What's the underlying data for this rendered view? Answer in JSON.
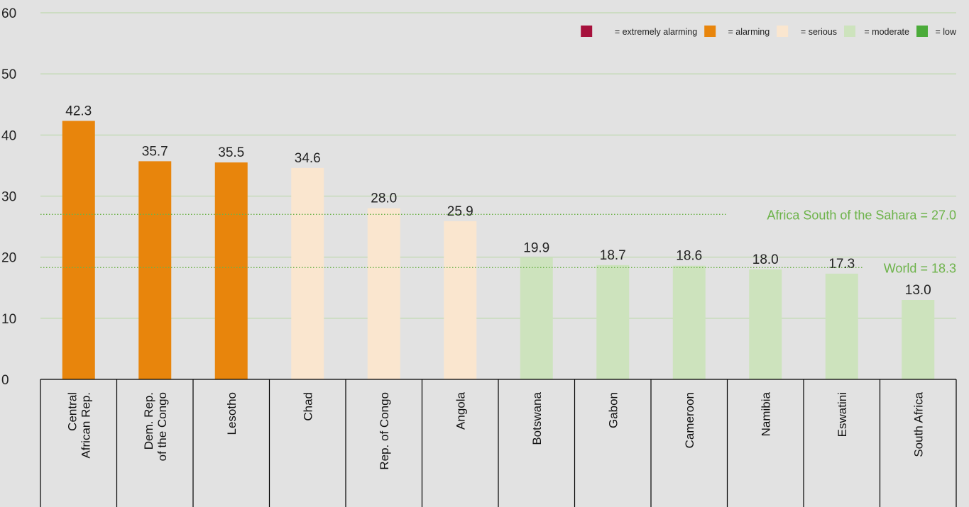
{
  "chart_data": {
    "type": "bar",
    "ylim": [
      0,
      60
    ],
    "yticks": [
      0,
      10,
      20,
      30,
      40,
      50,
      60
    ],
    "grid": true,
    "categories": [
      "Central African Rep.",
      "Dem. Rep. of the Congo",
      "Lesotho",
      "Chad",
      "Rep. of Congo",
      "Angola",
      "Botswana",
      "Gabon",
      "Cameroon",
      "Namibia",
      "Eswatini",
      "South Africa"
    ],
    "category_lines": [
      [
        "Central",
        "African Rep."
      ],
      [
        "Dem. Rep.",
        "of the Congo"
      ],
      [
        "Lesotho"
      ],
      [
        "Chad"
      ],
      [
        "Rep. of Congo"
      ],
      [
        "Angola"
      ],
      [
        "Botswana"
      ],
      [
        "Gabon"
      ],
      [
        "Cameroon"
      ],
      [
        "Namibia"
      ],
      [
        "Eswatini"
      ],
      [
        "South Africa"
      ]
    ],
    "values": [
      42.3,
      35.7,
      35.5,
      34.6,
      28.0,
      25.9,
      19.9,
      18.7,
      18.6,
      18.0,
      17.3,
      13.0
    ],
    "value_labels": [
      "42.3",
      "35.7",
      "35.5",
      "34.6",
      "28.0",
      "25.9",
      "19.9",
      "18.7",
      "18.6",
      "18.0",
      "17.3",
      "13.0"
    ],
    "severity": [
      "alarming",
      "alarming",
      "alarming",
      "serious",
      "serious",
      "serious",
      "moderate",
      "moderate",
      "moderate",
      "moderate",
      "moderate",
      "moderate"
    ],
    "legend_position": "top-right",
    "legend": [
      {
        "key": "extremely_alarming",
        "label": "= extremely alarming",
        "color": "#a6113c"
      },
      {
        "key": "alarming",
        "label": "= alarming",
        "color": "#e8850c"
      },
      {
        "key": "serious",
        "label": "= serious",
        "color": "#fae6cf"
      },
      {
        "key": "moderate",
        "label": "= moderate",
        "color": "#cde3bd"
      },
      {
        "key": "low",
        "label": "= low",
        "color": "#4bab3a"
      }
    ],
    "reference_lines": [
      {
        "label": "Africa South of the Sahara = 27.0",
        "value": 27.0
      },
      {
        "label": "World = 18.3",
        "value": 18.3
      }
    ]
  },
  "colors": {
    "background": "#e2e2e2",
    "grid": "#b6d6a3",
    "reference_line": "#6db34a",
    "reference_text": "#6db34a",
    "text": "#222222",
    "table_border": "#000000"
  }
}
